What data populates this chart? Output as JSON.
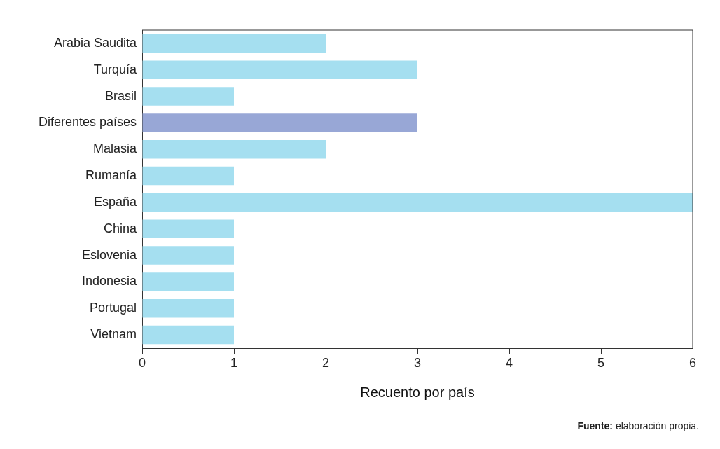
{
  "chart_data": {
    "type": "bar",
    "orientation": "horizontal",
    "categories": [
      "Arabia Saudita",
      "Turquía",
      "Brasil",
      "Diferentes países",
      "Malasia",
      "Rumanía",
      "España",
      "China",
      "Eslovenia",
      "Indonesia",
      "Portugal",
      "Vietnam"
    ],
    "values": [
      2,
      3,
      1,
      3,
      2,
      1,
      6,
      1,
      1,
      1,
      1,
      1
    ],
    "colors": [
      "#a5dff0",
      "#a5dff0",
      "#a5dff0",
      "#98a7d6",
      "#a5dff0",
      "#a5dff0",
      "#a5dff0",
      "#a5dff0",
      "#a5dff0",
      "#a5dff0",
      "#a5dff0",
      "#a5dff0"
    ],
    "xlabel": "Recuento por país",
    "xlim": [
      0,
      6
    ],
    "xticks": [
      0,
      1,
      2,
      3,
      4,
      5,
      6
    ],
    "grid": false,
    "legend": false,
    "annotations": [
      "Fuente: elaboración propia."
    ]
  }
}
